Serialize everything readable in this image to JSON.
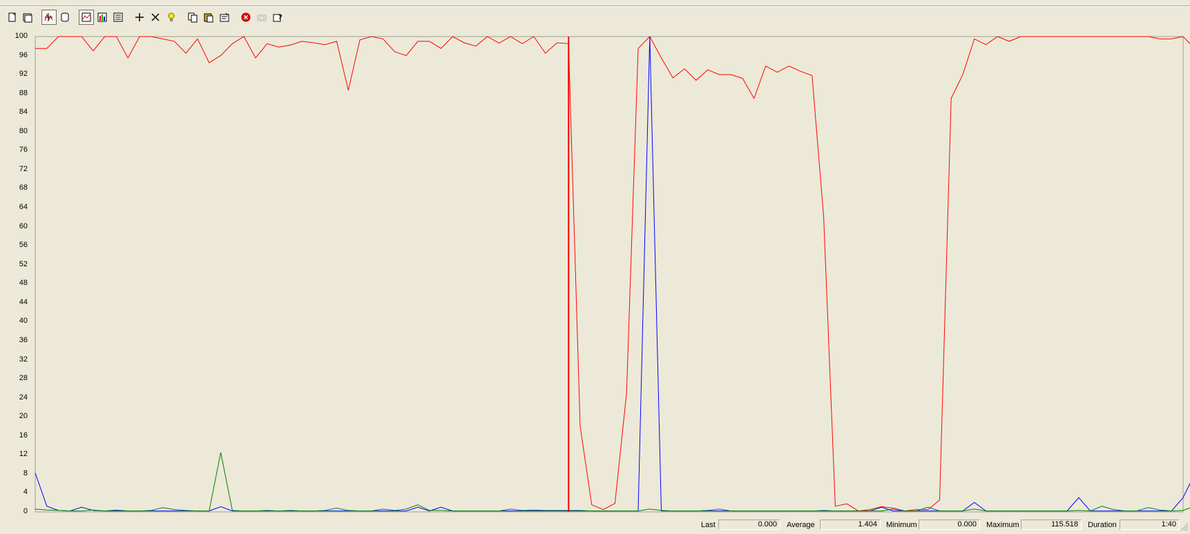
{
  "toolbar": {
    "buttons": [
      {
        "icon": "new-counter-set-icon",
        "pressed": false
      },
      {
        "icon": "clear-display-icon",
        "pressed": false
      },
      {
        "icon": "view-current-activity-icon",
        "pressed": true
      },
      {
        "icon": "view-log-data-icon",
        "pressed": false
      },
      {
        "icon": "view-graph-icon",
        "pressed": true
      },
      {
        "icon": "view-histogram-icon",
        "pressed": false
      },
      {
        "icon": "view-report-icon",
        "pressed": false
      },
      {
        "icon": "add-icon",
        "pressed": false
      },
      {
        "icon": "delete-icon",
        "pressed": false
      },
      {
        "icon": "highlight-icon",
        "pressed": false
      },
      {
        "icon": "copy-properties-icon",
        "pressed": false
      },
      {
        "icon": "paste-counter-list-icon",
        "pressed": false
      },
      {
        "icon": "properties-icon",
        "pressed": false
      },
      {
        "icon": "freeze-display-icon",
        "pressed": false
      },
      {
        "icon": "update-data-icon",
        "pressed": false,
        "disabled": true
      },
      {
        "icon": "help-icon",
        "pressed": false
      }
    ]
  },
  "colors": {
    "background": "#ece9d8",
    "red_series": "#ff0000",
    "blue_series": "#0000ff",
    "green_series": "#008000",
    "time_bar": "#ff0000"
  },
  "chart_data": {
    "type": "line",
    "ylim": [
      0,
      100
    ],
    "yticks": [
      "0",
      "4",
      "8",
      "12",
      "16",
      "20",
      "24",
      "28",
      "32",
      "36",
      "40",
      "44",
      "48",
      "52",
      "56",
      "60",
      "64",
      "68",
      "72",
      "76",
      "80",
      "84",
      "88",
      "92",
      "96",
      "100"
    ],
    "grid": false,
    "legend": "none",
    "samples": 100,
    "time_bar_at": 46,
    "series": [
      {
        "color": "#ff0000",
        "values": [
          97.5,
          97.5,
          100,
          100,
          100,
          97,
          100,
          100,
          95.5,
          100,
          100,
          99.5,
          99,
          96.5,
          99.5,
          94.5,
          96,
          98.5,
          100,
          95.5,
          98.5,
          97.8,
          98.2,
          99,
          98.7,
          98.3,
          99,
          88.7,
          99.3,
          100,
          99.5,
          96.8,
          96,
          99,
          99,
          97.5,
          100,
          98.7,
          98,
          100,
          98.6,
          100,
          98.5,
          100,
          96.5,
          98.7,
          98.5,
          18,
          1.5,
          0.5,
          1.8,
          25,
          97.5,
          100,
          95.5,
          91.3,
          93.2,
          90.8,
          93,
          92,
          92,
          91.2,
          87,
          93.8,
          92.5,
          93.8,
          92.7,
          91.8,
          62,
          1.2,
          1.7,
          0.2,
          0.5,
          1.1,
          0.8,
          0.2,
          0.5,
          0.5,
          2.5,
          87,
          92,
          99.5,
          98.3,
          100,
          99,
          100,
          100,
          100,
          100,
          100,
          100,
          100,
          100,
          100,
          100,
          100,
          100,
          99.5,
          99.5,
          100,
          97.5
        ]
      },
      {
        "color": "#0000ff",
        "values": [
          8.2,
          1.2,
          0.3,
          0.2,
          1,
          0.3,
          0.2,
          0.2,
          0.2,
          0.2,
          0.2,
          0.2,
          0.2,
          0.2,
          0.2,
          0.2,
          1.1,
          0.2,
          0.2,
          0.2,
          0.2,
          0.2,
          0.2,
          0.2,
          0.2,
          0.2,
          0.2,
          0.2,
          0.2,
          0.2,
          0.2,
          0.2,
          0.2,
          1,
          0.2,
          1,
          0.2,
          0.2,
          0.2,
          0.2,
          0.2,
          0.2,
          0.2,
          0.2,
          0.2,
          0.2,
          0.2,
          0.2,
          0.2,
          0.2,
          0.2,
          0.2,
          0.2,
          100,
          0.2,
          0.2,
          0.2,
          0.2,
          0.2,
          0.2,
          0.2,
          0.2,
          0.2,
          0.2,
          0.2,
          0.2,
          0.2,
          0.2,
          0.2,
          0.2,
          0.2,
          0.2,
          0.2,
          1,
          0.2,
          0.2,
          0.2,
          0.2,
          0.2,
          0.2,
          0.2,
          2,
          0.2,
          0.2,
          0.2,
          0.2,
          0.2,
          0.2,
          0.2,
          0.2,
          3,
          0.2,
          0.2,
          0.2,
          0.2,
          0.2,
          0.2,
          0.2,
          0.2,
          3,
          8
        ]
      },
      {
        "color": "#008000",
        "values": [
          0.6,
          0.4,
          0.3,
          0.2,
          0.2,
          0.4,
          0.2,
          0.4,
          0.2,
          0.2,
          0.3,
          0.9,
          0.5,
          0.3,
          0.2,
          0.2,
          12.5,
          0.3,
          0.2,
          0.2,
          0.3,
          0.2,
          0.3,
          0.2,
          0.2,
          0.3,
          0.8,
          0.3,
          0.2,
          0.2,
          0.6,
          0.3,
          0.6,
          1.5,
          0.3,
          0.3,
          0.2,
          0.2,
          0.2,
          0.2,
          0.2,
          0.6,
          0.3,
          0.4,
          0.3,
          0.3,
          0.3,
          0.3,
          0.2,
          0.2,
          0.2,
          0.2,
          0.2,
          0.6,
          0.3,
          0.2,
          0.2,
          0.2,
          0.3,
          0.6,
          0.2,
          0.2,
          0.2,
          0.2,
          0.2,
          0.2,
          0.2,
          0.2,
          0.3,
          0.2,
          0.2,
          0.2,
          0.2,
          0.2,
          0.6,
          0.2,
          0.2,
          1,
          0.2,
          0.2,
          0.2,
          0.6,
          0.2,
          0.2,
          0.2,
          0.2,
          0.2,
          0.2,
          0.2,
          0.2,
          0.3,
          0.2,
          1.2,
          0.5,
          0.2,
          0.2,
          0.9,
          0.4,
          0.2,
          0.3,
          1.2,
          0.5
        ]
      }
    ]
  },
  "status": {
    "last_label": "Last",
    "last_value": "0.000",
    "average_label": "Average",
    "average_value": "1.404",
    "minimum_label": "Minimum",
    "minimum_value": "0.000",
    "maximum_label": "Maximum",
    "maximum_value": "115.518",
    "duration_label": "Duration",
    "duration_value": "1:40"
  }
}
